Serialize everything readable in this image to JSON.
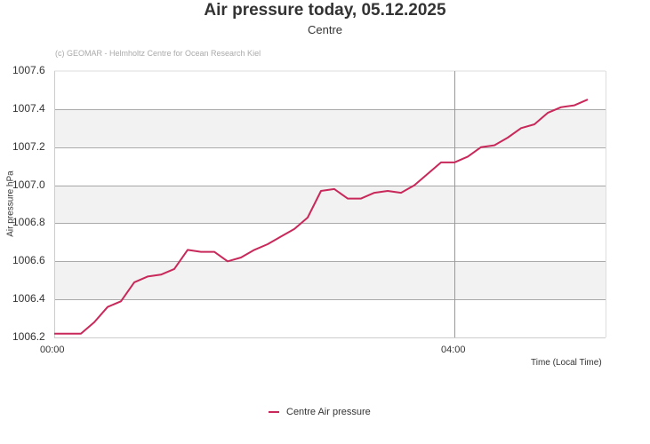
{
  "header": {
    "title": "Air pressure today, 05.12.2025",
    "subtitle": "Centre",
    "credit": "(c) GEOMAR - Helmholtz Centre for Ocean Research Kiel"
  },
  "axes": {
    "y_label": "Air pressure hPa",
    "x_label": "Time (Local Time)",
    "y_ticks": [
      "1007.6",
      "1007.4",
      "1007.2",
      "1007.0",
      "1006.8",
      "1006.6",
      "1006.4",
      "1006.2"
    ],
    "x_ticks": [
      "00:00",
      "04:00"
    ]
  },
  "legend": {
    "label": "Centre Air pressure"
  },
  "colors": {
    "series": "#c8285a",
    "band": "#f2f2f2",
    "grid": "#aaaaaa"
  },
  "chart_data": {
    "type": "line",
    "title": "Air pressure today, 05.12.2025",
    "subtitle": "Centre",
    "xlabel": "Time (Local Time)",
    "ylabel": "Air pressure hPa",
    "ylim": [
      1006.2,
      1007.6
    ],
    "y_ticks": [
      1006.2,
      1006.4,
      1006.6,
      1006.8,
      1007.0,
      1007.2,
      1007.4,
      1007.6
    ],
    "x_ticks": [
      "00:00",
      "04:00"
    ],
    "grid": true,
    "alternating_bands": true,
    "legend_position": "bottom",
    "series": [
      {
        "name": "Centre Air pressure",
        "color": "#c8285a",
        "x": [
          "00:00",
          "00:08",
          "00:16",
          "00:24",
          "00:32",
          "00:40",
          "00:48",
          "00:56",
          "01:04",
          "01:12",
          "01:20",
          "01:28",
          "01:36",
          "01:44",
          "01:52",
          "02:00",
          "02:08",
          "02:16",
          "02:24",
          "02:32",
          "02:40",
          "02:48",
          "02:56",
          "03:04",
          "03:12",
          "03:20",
          "03:28",
          "03:36",
          "03:44",
          "03:52",
          "04:00",
          "04:08",
          "04:16",
          "04:24",
          "04:32",
          "04:40",
          "04:48",
          "04:56",
          "05:04",
          "05:12",
          "05:20"
        ],
        "values": [
          1006.22,
          1006.22,
          1006.22,
          1006.28,
          1006.36,
          1006.39,
          1006.49,
          1006.52,
          1006.53,
          1006.56,
          1006.66,
          1006.65,
          1006.65,
          1006.6,
          1006.62,
          1006.66,
          1006.69,
          1006.73,
          1006.77,
          1006.83,
          1006.97,
          1006.98,
          1006.93,
          1006.93,
          1006.96,
          1006.97,
          1006.96,
          1007.0,
          1007.06,
          1007.12,
          1007.12,
          1007.15,
          1007.2,
          1007.21,
          1007.25,
          1007.3,
          1007.32,
          1007.38,
          1007.41,
          1007.42,
          1007.45
        ]
      }
    ]
  }
}
